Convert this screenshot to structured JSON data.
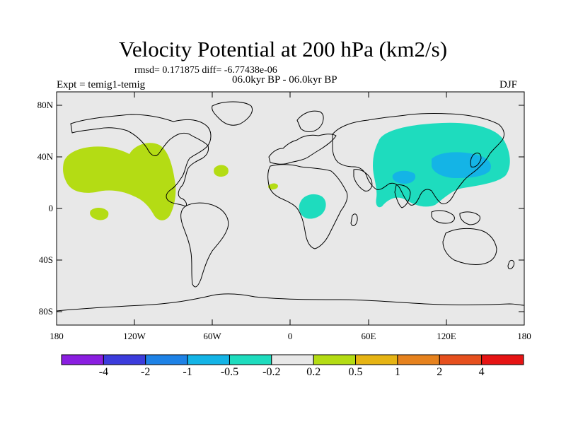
{
  "title": "Velocity Potential at 200 hPa (km2/s)",
  "rmsd_line": "rmsd= 0.171875 diff= -6.77438e-06",
  "left_label": "Expt = temig1-temig",
  "center_label": "06.0kyr BP - 06.0kyr BP",
  "right_label": "DJF",
  "map": {
    "lat_labels": [
      "80N",
      "40N",
      "0",
      "40S",
      "80S"
    ],
    "lon_labels": [
      "180",
      "120W",
      "60W",
      "0",
      "60E",
      "120E",
      "180"
    ],
    "ocean_color": "#e8e8e8",
    "coast_color": "#000000"
  },
  "colorbar": {
    "labels": [
      "-4",
      "-2",
      "-1",
      "-0.5",
      "-0.2",
      "0.2",
      "0.5",
      "1",
      "2",
      "4"
    ],
    "colors": [
      "#8a1ee0",
      "#3c3cdc",
      "#1e82e6",
      "#14b4e6",
      "#1edcbe",
      "#e8e8e8",
      "#b4dc14",
      "#e6b414",
      "#e6821e",
      "#e6501e",
      "#e61414"
    ]
  }
}
